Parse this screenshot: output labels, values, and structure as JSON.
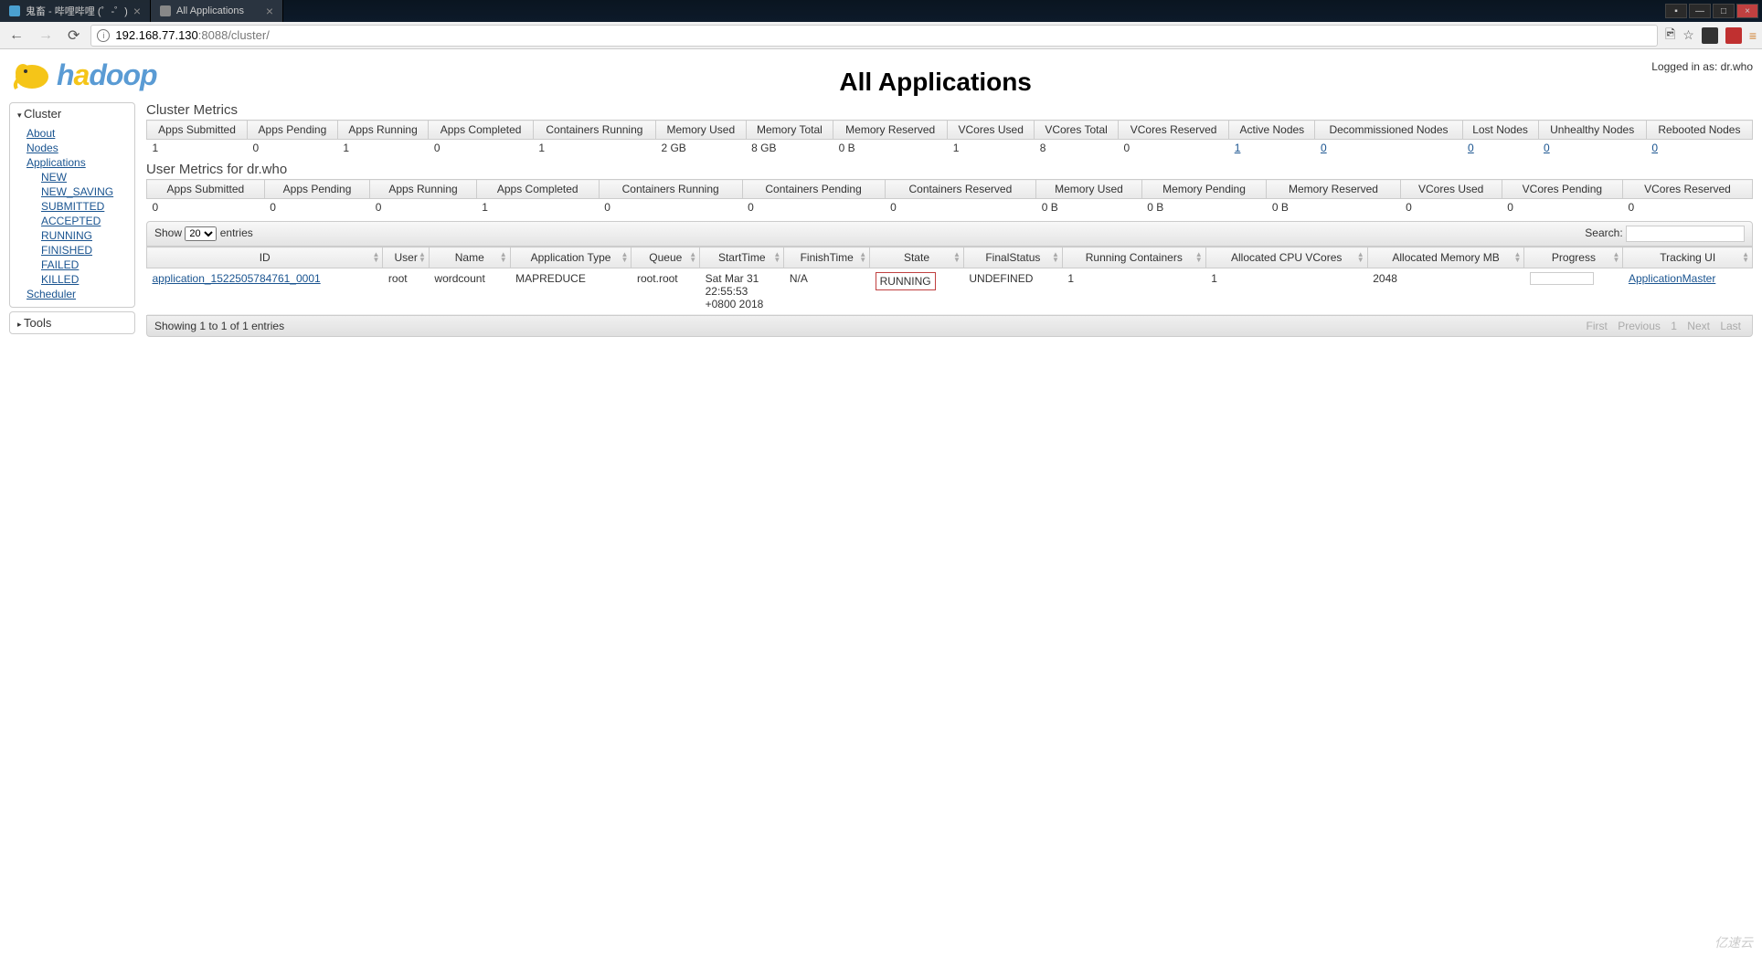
{
  "browser": {
    "tabs": [
      {
        "title": "鬼畜 - 哔哩哔哩 (゜-゜)",
        "active": false
      },
      {
        "title": "All Applications",
        "active": true
      }
    ],
    "url_prefix": "192.168.77.130",
    "url_port_path": ":8088/cluster/"
  },
  "header": {
    "page_title": "All Applications",
    "logged_in_label": "Logged in as: dr.who",
    "logo_text": "hadoop"
  },
  "sidebar": {
    "cluster_label": "Cluster",
    "tools_label": "Tools",
    "links": {
      "about": "About",
      "nodes": "Nodes",
      "applications": "Applications",
      "scheduler": "Scheduler"
    },
    "app_states": [
      "NEW",
      "NEW_SAVING",
      "SUBMITTED",
      "ACCEPTED",
      "RUNNING",
      "FINISHED",
      "FAILED",
      "KILLED"
    ]
  },
  "cluster_metrics": {
    "title": "Cluster Metrics",
    "headers": [
      "Apps Submitted",
      "Apps Pending",
      "Apps Running",
      "Apps Completed",
      "Containers Running",
      "Memory Used",
      "Memory Total",
      "Memory Reserved",
      "VCores Used",
      "VCores Total",
      "VCores Reserved",
      "Active Nodes",
      "Decommissioned Nodes",
      "Lost Nodes",
      "Unhealthy Nodes",
      "Rebooted Nodes"
    ],
    "values": [
      "1",
      "0",
      "1",
      "0",
      "1",
      "2 GB",
      "8 GB",
      "0 B",
      "1",
      "8",
      "0",
      "1",
      "0",
      "0",
      "0",
      "0"
    ],
    "value_links": [
      false,
      false,
      false,
      false,
      false,
      false,
      false,
      false,
      false,
      false,
      false,
      true,
      true,
      true,
      true,
      true
    ]
  },
  "user_metrics": {
    "title": "User Metrics for dr.who",
    "headers": [
      "Apps Submitted",
      "Apps Pending",
      "Apps Running",
      "Apps Completed",
      "Containers Running",
      "Containers Pending",
      "Containers Reserved",
      "Memory Used",
      "Memory Pending",
      "Memory Reserved",
      "VCores Used",
      "VCores Pending",
      "VCores Reserved"
    ],
    "values": [
      "0",
      "0",
      "0",
      "1",
      "0",
      "0",
      "0",
      "0 B",
      "0 B",
      "0 B",
      "0",
      "0",
      "0"
    ]
  },
  "datatable": {
    "show_label_pre": "Show",
    "show_value": "20",
    "show_label_post": "entries",
    "search_label": "Search:",
    "columns": [
      "ID",
      "User",
      "Name",
      "Application Type",
      "Queue",
      "StartTime",
      "FinishTime",
      "State",
      "FinalStatus",
      "Running Containers",
      "Allocated CPU VCores",
      "Allocated Memory MB",
      "Progress",
      "Tracking UI"
    ],
    "row": {
      "id": "application_1522505784761_0001",
      "user": "root",
      "name": "wordcount",
      "app_type": "MAPREDUCE",
      "queue": "root.root",
      "start_time": "Sat Mar 31 22:55:53 +0800 2018",
      "finish_time": "N/A",
      "state": "RUNNING",
      "final_status": "UNDEFINED",
      "running_containers": "1",
      "alloc_cpu": "1",
      "alloc_mem": "2048",
      "tracking_ui": "ApplicationMaster"
    },
    "footer_info": "Showing 1 to 1 of 1 entries",
    "pagination": [
      "First",
      "Previous",
      "1",
      "Next",
      "Last"
    ]
  },
  "watermark": "亿速云",
  "colors": {
    "link": "#1a5490",
    "state_border": "#c04040",
    "header_bg_top": "#f8f8f8",
    "header_bg_bottom": "#e8e8e8"
  }
}
